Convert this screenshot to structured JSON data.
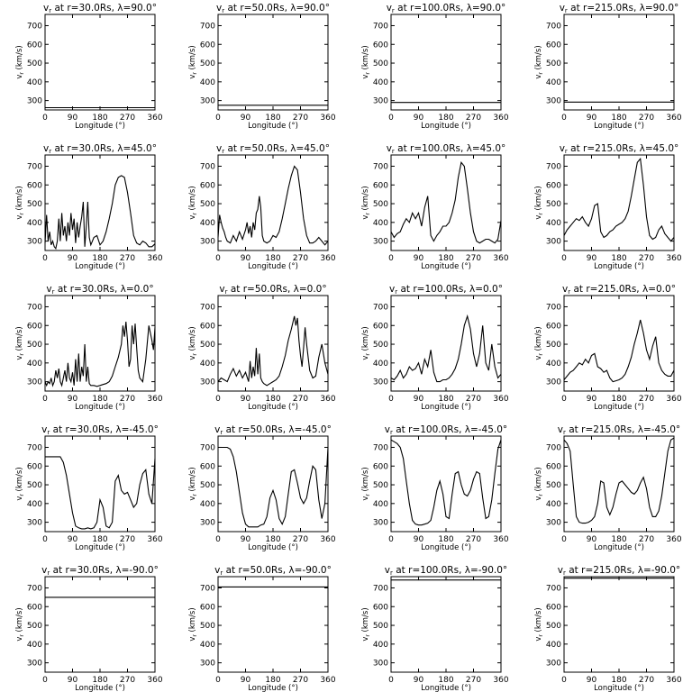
{
  "chart_data": {
    "type": "line",
    "panel_grid": {
      "rows": 5,
      "cols": 4
    },
    "shared_axes": {
      "xlabel": "Longitude (°)",
      "ylabel": "v_r (km/s)",
      "xlim": [
        0,
        360
      ],
      "ylim": [
        250,
        760
      ],
      "xticks": [
        0,
        90,
        180,
        270,
        360
      ],
      "yticks": [
        300,
        400,
        500,
        600,
        700
      ]
    },
    "title_template": "v_r at r={r}Rs, λ={lat}°",
    "panels": [
      {
        "title": "vr at r=30.0Rs, λ=90.0°",
        "r": 30.0,
        "lat": 90.0,
        "x": [
          0,
          360
        ],
        "y": [
          262,
          262
        ]
      },
      {
        "title": "vr at r=50.0Rs, λ=90.0°",
        "r": 50.0,
        "lat": 90.0,
        "x": [
          0,
          360
        ],
        "y": [
          275,
          275
        ]
      },
      {
        "title": "vr at r=100.0Rs, λ=90.0°",
        "r": 100.0,
        "lat": 90.0,
        "x": [
          0,
          360
        ],
        "y": [
          290,
          290
        ]
      },
      {
        "title": "vr at r=215.0Rs, λ=90.0°",
        "r": 215.0,
        "lat": 90.0,
        "x": [
          0,
          360
        ],
        "y": [
          292,
          292
        ]
      },
      {
        "title": "vr at r=30.0Rs, λ=45.0°",
        "r": 30.0,
        "lat": 45.0,
        "x": [
          0,
          5,
          10,
          15,
          20,
          25,
          30,
          35,
          40,
          45,
          50,
          55,
          60,
          65,
          70,
          75,
          80,
          85,
          90,
          95,
          100,
          105,
          110,
          115,
          120,
          125,
          130,
          135,
          140,
          145,
          150,
          160,
          170,
          180,
          190,
          200,
          210,
          220,
          230,
          240,
          250,
          260,
          270,
          280,
          290,
          300,
          310,
          320,
          330,
          340,
          350,
          360
        ],
        "y": [
          290,
          440,
          300,
          350,
          280,
          300,
          270,
          260,
          300,
          420,
          300,
          450,
          330,
          380,
          300,
          400,
          330,
          450,
          360,
          420,
          290,
          400,
          320,
          380,
          430,
          510,
          270,
          380,
          510,
          320,
          280,
          320,
          330,
          280,
          300,
          350,
          420,
          500,
          600,
          640,
          650,
          640,
          560,
          450,
          330,
          290,
          280,
          300,
          290,
          270,
          270,
          285
        ]
      },
      {
        "title": "vr at r=50.0Rs, λ=45.0°",
        "r": 50.0,
        "lat": 45.0,
        "x": [
          0,
          5,
          10,
          15,
          20,
          25,
          30,
          40,
          50,
          60,
          70,
          80,
          90,
          95,
          100,
          105,
          110,
          115,
          120,
          125,
          130,
          135,
          140,
          145,
          150,
          160,
          170,
          180,
          190,
          200,
          210,
          220,
          230,
          240,
          250,
          260,
          270,
          280,
          290,
          300,
          310,
          320,
          330,
          340,
          350,
          360
        ],
        "y": [
          320,
          440,
          400,
          370,
          350,
          320,
          300,
          290,
          330,
          300,
          350,
          310,
          360,
          400,
          340,
          380,
          320,
          400,
          360,
          450,
          470,
          540,
          480,
          330,
          300,
          290,
          300,
          330,
          320,
          350,
          420,
          500,
          580,
          650,
          700,
          680,
          560,
          420,
          330,
          290,
          290,
          300,
          320,
          300,
          280,
          300
        ]
      },
      {
        "title": "vr at r=100.0Rs, λ=45.0°",
        "r": 100.0,
        "lat": 45.0,
        "x": [
          0,
          10,
          20,
          30,
          40,
          50,
          60,
          70,
          80,
          90,
          100,
          110,
          120,
          130,
          140,
          150,
          160,
          170,
          180,
          190,
          200,
          210,
          220,
          230,
          240,
          250,
          260,
          270,
          280,
          290,
          300,
          310,
          320,
          330,
          340,
          350,
          360
        ],
        "y": [
          350,
          320,
          340,
          350,
          390,
          420,
          400,
          450,
          420,
          450,
          380,
          480,
          540,
          330,
          300,
          330,
          350,
          380,
          380,
          400,
          450,
          520,
          640,
          720,
          700,
          580,
          450,
          350,
          300,
          290,
          300,
          310,
          310,
          300,
          290,
          310,
          410
        ]
      },
      {
        "title": "vr at r=215.0Rs, λ=45.0°",
        "r": 215.0,
        "lat": 45.0,
        "x": [
          0,
          10,
          20,
          30,
          40,
          50,
          60,
          70,
          80,
          90,
          100,
          110,
          120,
          130,
          140,
          150,
          160,
          170,
          180,
          190,
          200,
          210,
          220,
          230,
          240,
          250,
          260,
          270,
          280,
          290,
          300,
          310,
          320,
          330,
          340,
          350,
          360
        ],
        "y": [
          330,
          360,
          380,
          400,
          420,
          410,
          430,
          400,
          380,
          420,
          490,
          500,
          350,
          320,
          330,
          350,
          360,
          380,
          390,
          400,
          420,
          460,
          540,
          630,
          720,
          740,
          600,
          430,
          330,
          310,
          320,
          360,
          380,
          340,
          320,
          300,
          320
        ]
      },
      {
        "title": "vr at r=30.0Rs, λ=0.0°",
        "r": 30.0,
        "lat": 0.0,
        "x": [
          0,
          5,
          10,
          15,
          20,
          25,
          30,
          35,
          40,
          45,
          50,
          55,
          60,
          65,
          70,
          75,
          80,
          85,
          90,
          95,
          100,
          105,
          110,
          115,
          120,
          125,
          130,
          135,
          140,
          145,
          150,
          160,
          170,
          180,
          190,
          200,
          210,
          220,
          230,
          240,
          250,
          255,
          260,
          265,
          270,
          275,
          280,
          285,
          290,
          295,
          300,
          305,
          310,
          320,
          330,
          340,
          350,
          355,
          360
        ],
        "y": [
          300,
          280,
          300,
          290,
          320,
          280,
          300,
          360,
          320,
          370,
          300,
          280,
          320,
          360,
          300,
          400,
          320,
          300,
          350,
          280,
          420,
          300,
          450,
          300,
          380,
          330,
          500,
          300,
          380,
          290,
          280,
          280,
          275,
          280,
          285,
          290,
          300,
          330,
          380,
          430,
          500,
          600,
          540,
          620,
          520,
          380,
          420,
          600,
          500,
          610,
          480,
          360,
          320,
          300,
          420,
          600,
          520,
          470,
          590
        ]
      },
      {
        "title": "vr at r=50.0Rs, λ=0.0°",
        "r": 50.0,
        "lat": 0.0,
        "x": [
          0,
          10,
          20,
          30,
          40,
          50,
          60,
          70,
          80,
          90,
          100,
          105,
          110,
          115,
          120,
          125,
          130,
          135,
          140,
          145,
          150,
          160,
          170,
          180,
          190,
          200,
          210,
          220,
          230,
          240,
          250,
          255,
          260,
          265,
          270,
          275,
          280,
          285,
          290,
          300,
          310,
          320,
          330,
          340,
          350,
          360
        ],
        "y": [
          300,
          320,
          310,
          300,
          340,
          370,
          330,
          360,
          320,
          350,
          300,
          410,
          320,
          380,
          330,
          480,
          340,
          450,
          320,
          300,
          290,
          280,
          290,
          300,
          310,
          330,
          380,
          440,
          520,
          580,
          650,
          600,
          640,
          520,
          440,
          380,
          480,
          590,
          500,
          360,
          320,
          330,
          430,
          500,
          400,
          340
        ]
      },
      {
        "title": "vr at r=100.0Rs, λ=0.0°",
        "r": 100.0,
        "lat": 0.0,
        "x": [
          0,
          10,
          20,
          30,
          40,
          50,
          60,
          70,
          80,
          90,
          100,
          110,
          120,
          130,
          140,
          150,
          160,
          170,
          180,
          190,
          200,
          210,
          220,
          230,
          240,
          250,
          260,
          270,
          280,
          290,
          300,
          310,
          320,
          330,
          340,
          350,
          360
        ],
        "y": [
          320,
          310,
          330,
          360,
          320,
          340,
          380,
          360,
          370,
          400,
          340,
          420,
          380,
          470,
          350,
          300,
          300,
          310,
          310,
          320,
          340,
          370,
          420,
          500,
          600,
          650,
          580,
          450,
          380,
          450,
          600,
          400,
          360,
          500,
          380,
          320,
          340
        ]
      },
      {
        "title": "vr at r=215.0Rs, λ=0.0°",
        "r": 215.0,
        "lat": 0.0,
        "x": [
          0,
          10,
          20,
          30,
          40,
          50,
          60,
          70,
          80,
          90,
          100,
          110,
          120,
          130,
          140,
          150,
          160,
          170,
          180,
          190,
          200,
          210,
          220,
          230,
          240,
          250,
          260,
          270,
          280,
          290,
          300,
          310,
          320,
          330,
          340,
          350,
          360
        ],
        "y": [
          310,
          330,
          350,
          360,
          380,
          400,
          390,
          420,
          400,
          440,
          450,
          380,
          370,
          350,
          360,
          320,
          300,
          305,
          310,
          320,
          340,
          380,
          430,
          500,
          560,
          630,
          560,
          470,
          420,
          490,
          540,
          400,
          360,
          340,
          330,
          330,
          360
        ]
      },
      {
        "title": "vr at r=30.0Rs, λ=-45.0°",
        "r": 30.0,
        "lat": -45.0,
        "x": [
          0,
          10,
          20,
          30,
          40,
          50,
          60,
          70,
          80,
          90,
          100,
          110,
          120,
          130,
          140,
          150,
          160,
          170,
          180,
          190,
          200,
          210,
          220,
          230,
          240,
          250,
          260,
          270,
          280,
          290,
          300,
          310,
          320,
          330,
          340,
          350,
          360
        ],
        "y": [
          650,
          650,
          650,
          650,
          650,
          650,
          620,
          550,
          450,
          350,
          280,
          270,
          265,
          265,
          270,
          265,
          270,
          300,
          420,
          380,
          280,
          270,
          300,
          520,
          550,
          470,
          450,
          460,
          420,
          380,
          400,
          500,
          560,
          580,
          450,
          400,
          640
        ]
      },
      {
        "title": "vr at r=50.0Rs, λ=-45.0°",
        "r": 50.0,
        "lat": -45.0,
        "x": [
          0,
          10,
          20,
          30,
          40,
          50,
          60,
          70,
          80,
          90,
          100,
          110,
          120,
          130,
          140,
          150,
          160,
          170,
          180,
          190,
          200,
          210,
          220,
          230,
          240,
          250,
          260,
          270,
          280,
          290,
          300,
          310,
          320,
          330,
          340,
          350,
          360
        ],
        "y": [
          700,
          700,
          700,
          700,
          690,
          650,
          570,
          460,
          350,
          290,
          275,
          275,
          275,
          275,
          285,
          290,
          330,
          430,
          470,
          420,
          320,
          290,
          330,
          450,
          570,
          580,
          510,
          430,
          400,
          430,
          520,
          600,
          580,
          420,
          320,
          400,
          700
        ]
      },
      {
        "title": "vr at r=100.0Rs, λ=-45.0°",
        "r": 100.0,
        "lat": -45.0,
        "x": [
          0,
          10,
          20,
          30,
          40,
          50,
          60,
          70,
          80,
          90,
          100,
          110,
          120,
          130,
          140,
          150,
          160,
          170,
          180,
          190,
          200,
          210,
          220,
          230,
          240,
          250,
          260,
          270,
          280,
          290,
          300,
          310,
          320,
          330,
          340,
          350,
          360
        ],
        "y": [
          740,
          730,
          720,
          700,
          640,
          520,
          400,
          310,
          290,
          285,
          285,
          290,
          295,
          310,
          380,
          470,
          520,
          450,
          330,
          320,
          450,
          560,
          570,
          500,
          450,
          440,
          470,
          530,
          570,
          560,
          430,
          320,
          330,
          420,
          560,
          690,
          740
        ]
      },
      {
        "title": "vr at r=215.0Rs, λ=-45.0°",
        "r": 215.0,
        "lat": -45.0,
        "x": [
          0,
          10,
          20,
          30,
          40,
          50,
          60,
          70,
          80,
          90,
          100,
          110,
          120,
          130,
          140,
          150,
          160,
          170,
          180,
          190,
          200,
          210,
          220,
          230,
          240,
          250,
          260,
          270,
          280,
          290,
          300,
          310,
          320,
          330,
          340,
          350,
          360
        ],
        "y": [
          740,
          720,
          680,
          500,
          330,
          300,
          295,
          295,
          300,
          310,
          330,
          400,
          520,
          510,
          380,
          340,
          380,
          450,
          510,
          520,
          500,
          480,
          460,
          450,
          470,
          510,
          540,
          480,
          380,
          330,
          330,
          360,
          440,
          560,
          680,
          740,
          750
        ]
      },
      {
        "title": "vr at r=30.0Rs, λ=-90.0°",
        "r": 30.0,
        "lat": -90.0,
        "x": [
          0,
          360
        ],
        "y": [
          650,
          650
        ]
      },
      {
        "title": "vr at r=50.0Rs, λ=-90.0°",
        "r": 50.0,
        "lat": -90.0,
        "x": [
          0,
          360
        ],
        "y": [
          705,
          705
        ]
      },
      {
        "title": "vr at r=100.0Rs, λ=-90.0°",
        "r": 100.0,
        "lat": -90.0,
        "x": [
          0,
          360
        ],
        "y": [
          742,
          742
        ]
      },
      {
        "title": "vr at r=215.0Rs, λ=-90.0°",
        "r": 215.0,
        "lat": -90.0,
        "x": [
          0,
          360
        ],
        "y": [
          752,
          752
        ]
      }
    ]
  }
}
